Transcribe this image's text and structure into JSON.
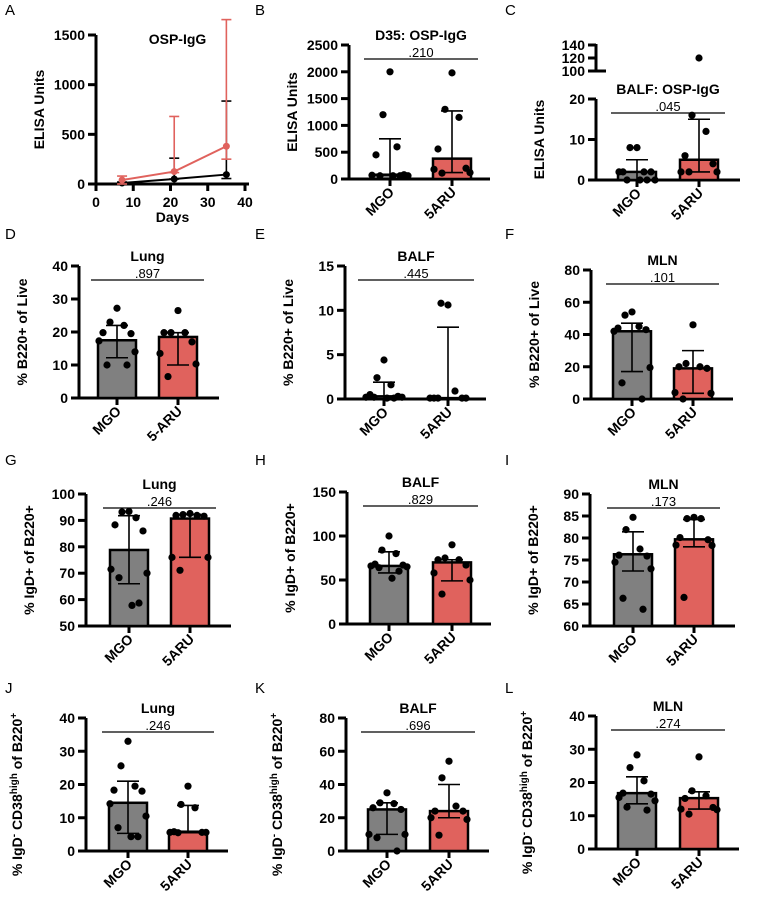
{
  "colors": {
    "mgo": "#808080",
    "aru": "#e0625d",
    "line_mgo": "#000000",
    "line_aru": "#e0625d",
    "axis": "#000000"
  },
  "chart_data": [
    {
      "id": "A",
      "type": "line",
      "letter": "A",
      "title": "OSP-IgG",
      "xlabel": "Days",
      "ylabel": "ELISA Units",
      "xlim": [
        0,
        40
      ],
      "ylim": [
        0,
        1500
      ],
      "xticks": [
        0,
        10,
        20,
        30,
        40
      ],
      "yticks": [
        0,
        500,
        1000,
        1500
      ],
      "series": [
        {
          "name": "MGO",
          "color": "#000000",
          "x": [
            7,
            21,
            35
          ],
          "y": [
            10,
            50,
            95
          ],
          "err_low": [
            0,
            0,
            40
          ],
          "err_high": [
            10,
            210,
            740
          ]
        },
        {
          "name": "5ARU",
          "color": "#e0625d",
          "x": [
            7,
            21,
            35
          ],
          "y": [
            40,
            125,
            380
          ],
          "err_low": [
            40,
            10,
            130
          ],
          "err_high": [
            40,
            555,
            1275
          ]
        }
      ]
    },
    {
      "id": "B",
      "type": "bar",
      "letter": "B",
      "title": "D35: OSP-IgG",
      "pvalue": ".210",
      "ylabel": "ELISA Units",
      "categories": [
        "MGO",
        "5ARU"
      ],
      "ylim": [
        0,
        2500
      ],
      "yticks": [
        0,
        500,
        1000,
        1500,
        2000,
        2500
      ],
      "bars": [
        {
          "name": "MGO",
          "value": 80,
          "err_low": 0,
          "err_high": 750,
          "points": [
            2000,
            1200,
            600,
            450,
            80,
            70,
            60,
            60,
            60,
            60
          ]
        },
        {
          "name": "5ARU",
          "value": 380,
          "err_low": 120,
          "err_high": 1270,
          "points": [
            1980,
            1300,
            1150,
            560,
            200,
            180,
            120,
            110
          ]
        }
      ]
    },
    {
      "id": "C",
      "type": "bar",
      "letter": "C",
      "title": "BALF: OSP-IgG",
      "pvalue": ".045",
      "ylabel": "ELISA Units",
      "categories": [
        "MGO",
        "5ARU"
      ],
      "ylim": [
        0,
        20
      ],
      "yticks": [
        0,
        10,
        20
      ],
      "broken_axis": {
        "upper_ticks": [
          100,
          120,
          140
        ]
      },
      "bars": [
        {
          "name": "MGO",
          "value": 2,
          "err_low": 0,
          "err_high": 5,
          "points": [
            8,
            8,
            2,
            2,
            2,
            2,
            0,
            0,
            0,
            0
          ]
        },
        {
          "name": "5ARU",
          "value": 5,
          "err_low": 2,
          "err_high": 15,
          "points": [
            120,
            16,
            12,
            6,
            4,
            2,
            2,
            2
          ]
        }
      ]
    },
    {
      "id": "D",
      "type": "bar",
      "letter": "D",
      "title": "Lung",
      "pvalue": ".897",
      "ylabel": "% B220+ of Live",
      "categories": [
        "MGO",
        "5-ARU"
      ],
      "ylim": [
        0,
        40
      ],
      "yticks": [
        0,
        10,
        20,
        30,
        40
      ],
      "bars": [
        {
          "name": "MGO",
          "value": 17.5,
          "err_low": 12.2,
          "err_high": 22,
          "points": [
            27.2,
            23,
            22,
            19.8,
            19.5,
            17.3,
            14,
            10,
            10
          ]
        },
        {
          "name": "5-ARU",
          "value": 18.5,
          "err_low": 10,
          "err_high": 19.8,
          "points": [
            26.5,
            19.8,
            19.8,
            19.8,
            17,
            13.5,
            10.3,
            6.5
          ]
        }
      ]
    },
    {
      "id": "E",
      "type": "bar",
      "letter": "E",
      "title": "BALF",
      "pvalue": ".445",
      "ylabel": "% B220+ of Live",
      "categories": [
        "MGO",
        "5ARU"
      ],
      "ylim": [
        0,
        15
      ],
      "yticks": [
        0,
        5,
        10,
        15
      ],
      "bars": [
        {
          "name": "MGO",
          "value": 0.3,
          "err_low": 0,
          "err_high": 1.9,
          "points": [
            4.4,
            2.4,
            1.6,
            0.5,
            0.3,
            0.2,
            0.2,
            0.2,
            0.1,
            0.1
          ]
        },
        {
          "name": "5ARU",
          "value": 0.1,
          "err_low": 0,
          "err_high": 8.1,
          "points": [
            10.6,
            10.8,
            0.9,
            0.1,
            0.1,
            0.1,
            0.1,
            0.1
          ]
        }
      ]
    },
    {
      "id": "F",
      "type": "bar",
      "letter": "F",
      "title": "MLN",
      "pvalue": ".101",
      "ylabel": "% B220+ of Live",
      "categories": [
        "MGO",
        "5ARU"
      ],
      "ylim": [
        0,
        80
      ],
      "yticks": [
        0,
        20,
        40,
        60,
        80
      ],
      "bars": [
        {
          "name": "MGO",
          "value": 42,
          "err_low": 17,
          "err_high": 47,
          "points": [
            54,
            52,
            45,
            44,
            43,
            42,
            19.5,
            10,
            0
          ]
        },
        {
          "name": "5ARU",
          "value": 19,
          "err_low": 3.5,
          "err_high": 30,
          "points": [
            46,
            22,
            20,
            20,
            19,
            4,
            3.5,
            0
          ]
        }
      ]
    },
    {
      "id": "G",
      "type": "bar",
      "letter": "G",
      "title": "Lung",
      "pvalue": ".246",
      "ylabel": "% IgD+ of B220+",
      "categories": [
        "MGO",
        "5ARU"
      ],
      "ylim": [
        50,
        100
      ],
      "yticks": [
        50,
        60,
        70,
        80,
        90,
        100
      ],
      "bars": [
        {
          "name": "MGO",
          "value": 78.8,
          "err_low": 66,
          "err_high": 91.8,
          "points": [
            93.4,
            93.2,
            91,
            88.3,
            86,
            71.5,
            70,
            68.3,
            58.7,
            57.8
          ]
        },
        {
          "name": "5ARU",
          "value": 90.7,
          "err_low": 76,
          "err_high": 92.3,
          "points": [
            92.6,
            92.2,
            91.9,
            91.9,
            91.6,
            76,
            76,
            71.1
          ]
        }
      ]
    },
    {
      "id": "H",
      "type": "bar",
      "letter": "H",
      "title": "BALF",
      "pvalue": ".829",
      "ylabel": "% IgD+ of B220+",
      "categories": [
        "MGO",
        "5ARU"
      ],
      "ylim": [
        0,
        150
      ],
      "yticks": [
        0,
        50,
        100,
        150
      ],
      "bars": [
        {
          "name": "MGO",
          "value": 66,
          "err_low": 58,
          "err_high": 82,
          "points": [
            100,
            84,
            80,
            68,
            67,
            66,
            65,
            64,
            60,
            52
          ]
        },
        {
          "name": "5ARU",
          "value": 70,
          "err_low": 49,
          "err_high": 73,
          "points": [
            90,
            75,
            73,
            73,
            67,
            58,
            50,
            34
          ]
        }
      ]
    },
    {
      "id": "I",
      "type": "bar",
      "letter": "I",
      "title": "MLN",
      "pvalue": ".173",
      "ylabel": "% IgD+ of B220+",
      "categories": [
        "MGO",
        "5ARU"
      ],
      "ylim": [
        60,
        90
      ],
      "yticks": [
        60,
        65,
        70,
        75,
        80,
        85,
        90
      ],
      "bars": [
        {
          "name": "MGO",
          "value": 76.3,
          "err_low": 72.5,
          "err_high": 81.4,
          "points": [
            84.7,
            81.9,
            77.5,
            76.1,
            75.9,
            74.5,
            73,
            66.3,
            63.8
          ]
        },
        {
          "name": "5ARU",
          "value": 79.7,
          "err_low": 78,
          "err_high": 84.2,
          "points": [
            84.7,
            84.4,
            84.4,
            80.1,
            79.6,
            78.4,
            78.3,
            66.5
          ]
        }
      ]
    },
    {
      "id": "J",
      "type": "bar",
      "letter": "J",
      "title": "Lung",
      "pvalue": ".246",
      "ylabel": "% IgD- CD38high of B220+",
      "ylabel_parts": {
        "pre": "% IgD",
        "sup1": "-",
        "mid": " CD38",
        "sup2": "high",
        "post": " of B220",
        "sup3": "+"
      },
      "categories": [
        "MGO",
        "5ARU"
      ],
      "ylim": [
        0,
        40
      ],
      "yticks": [
        0,
        10,
        20,
        30,
        40
      ],
      "bars": [
        {
          "name": "MGO",
          "value": 14.5,
          "err_low": 5.3,
          "err_high": 21,
          "points": [
            33,
            25.6,
            19.5,
            18.3,
            18,
            14.2,
            10.5,
            7,
            4.3,
            4.3
          ]
        },
        {
          "name": "5ARU",
          "value": 5.8,
          "err_low": 5.5,
          "err_high": 13.7,
          "points": [
            19.5,
            14,
            13,
            5.8,
            5.6,
            5.6,
            5.6,
            5.5
          ]
        }
      ]
    },
    {
      "id": "K",
      "type": "bar",
      "letter": "K",
      "title": "BALF",
      "pvalue": ".696",
      "ylabel": "% IgD- CD38high of B220+",
      "ylabel_parts": {
        "pre": "% IgD",
        "sup1": "-",
        "mid": " CD38",
        "sup2": "high",
        "post": " of B220",
        "sup3": "+"
      },
      "categories": [
        "MGO",
        "5ARU"
      ],
      "ylim": [
        0,
        80
      ],
      "yticks": [
        0,
        20,
        40,
        60,
        80
      ],
      "bars": [
        {
          "name": "MGO",
          "value": 25,
          "err_low": 10,
          "err_high": 29,
          "points": [
            35,
            29,
            28.5,
            26,
            25,
            10,
            10,
            8,
            0
          ]
        },
        {
          "name": "5ARU",
          "value": 24,
          "err_low": 20,
          "err_high": 40,
          "points": [
            54,
            44,
            27,
            24,
            24,
            20,
            19,
            9.5
          ]
        }
      ]
    },
    {
      "id": "L",
      "type": "bar",
      "letter": "L",
      "title": "MLN",
      "pvalue": ".274",
      "ylabel": "% IgD- CD38high of B220+",
      "ylabel_parts": {
        "pre": "% IgD",
        "sup1": "-",
        "mid": " CD38",
        "sup2": "high",
        "post": " of B220",
        "sup3": "+"
      },
      "categories": [
        "MGO",
        "5ARU"
      ],
      "ylim": [
        0,
        40
      ],
      "yticks": [
        0,
        10,
        20,
        30,
        40
      ],
      "bars": [
        {
          "name": "MGO",
          "value": 16.8,
          "err_low": 13.6,
          "err_high": 21.7,
          "points": [
            28.3,
            24.5,
            20.5,
            16.8,
            16.5,
            15.5,
            14.5,
            12.6,
            11.7
          ]
        },
        {
          "name": "5ARU",
          "value": 15.3,
          "err_low": 12,
          "err_high": 17.2,
          "points": [
            27.7,
            17.5,
            16,
            15.2,
            12.5,
            12,
            11.8,
            10.5
          ]
        }
      ]
    }
  ]
}
